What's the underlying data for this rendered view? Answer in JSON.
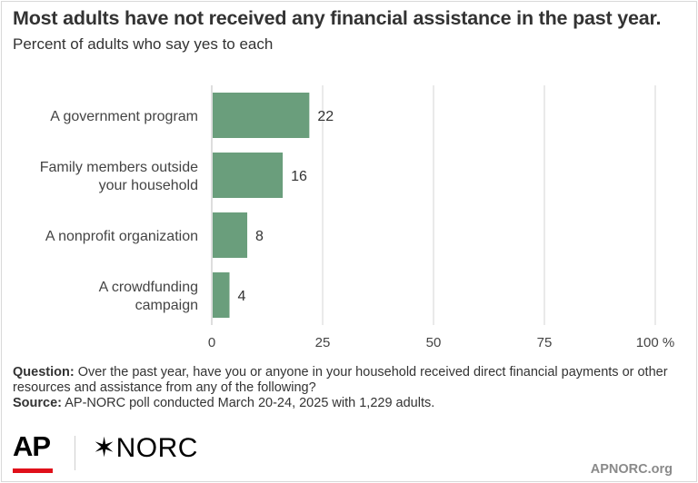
{
  "header": {
    "title": "Most adults have not received any financial assistance in the past year.",
    "subtitle": "Percent of adults who say yes to each"
  },
  "chart_data": {
    "type": "bar",
    "orientation": "horizontal",
    "categories": [
      [
        "A government program"
      ],
      [
        "Family members outside",
        "your household"
      ],
      [
        "A nonprofit organization"
      ],
      [
        "A crowdfunding",
        "campaign"
      ]
    ],
    "values": [
      22,
      16,
      8,
      4
    ],
    "data_labels": [
      "22",
      "16",
      "8",
      "4"
    ],
    "xlim": [
      0,
      100
    ],
    "ticks": [
      0,
      25,
      50,
      75,
      100
    ],
    "tick_labels": [
      "0",
      "25",
      "50",
      "75",
      "100 %"
    ],
    "bar_color": "#6a9e7c",
    "grid": true
  },
  "footnote": {
    "question_label": "Question:",
    "question_text": " Over the past year, have you or anyone in your household received direct financial payments or other resources and assistance from any of the following?",
    "source_label": "Source:",
    "source_text": " AP-NORC poll conducted March 20-24, 2025 with 1,229 adults."
  },
  "branding": {
    "ap_logo": "AP",
    "norc_logo": "✶NORC",
    "site": "APNORC.org",
    "ap_red": "#e0101a"
  }
}
